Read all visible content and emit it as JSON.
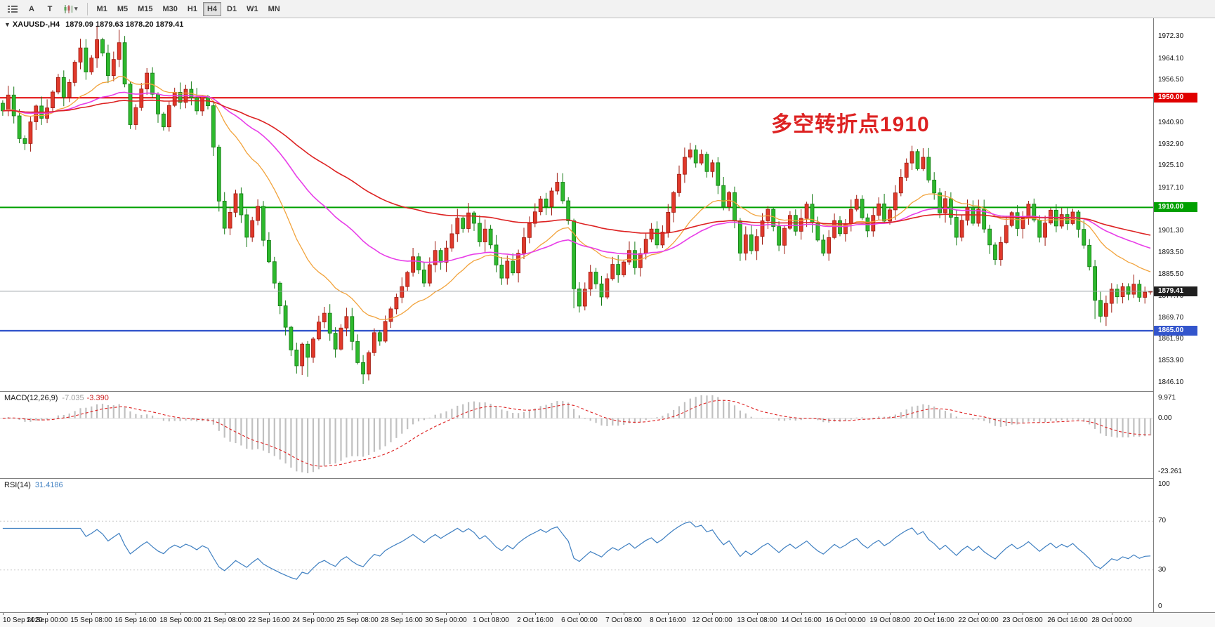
{
  "app": {
    "title": "XAUUSD-,H4"
  },
  "toolbar": {
    "tools": {
      "cursor_label": "A",
      "text_label": "T",
      "dropdown_glyph": "▾"
    },
    "timeframes": [
      {
        "label": "M1",
        "active": false
      },
      {
        "label": "M5",
        "active": false
      },
      {
        "label": "M15",
        "active": false
      },
      {
        "label": "M30",
        "active": false
      },
      {
        "label": "H1",
        "active": false
      },
      {
        "label": "H4",
        "active": true
      },
      {
        "label": "D1",
        "active": false
      },
      {
        "label": "W1",
        "active": false
      },
      {
        "label": "MN",
        "active": false
      }
    ]
  },
  "main": {
    "collapse_glyph": "▼",
    "symbol_header": "XAUUSD-,H4",
    "ohlc_text": "1879.09 1879.63 1878.20 1879.41",
    "annotation": {
      "text": "多空转折点1910",
      "color": "#dd2222"
    }
  },
  "levels": [
    {
      "price": 1950.0,
      "label": "1950.00",
      "color": "#e00000",
      "width": 2
    },
    {
      "price": 1910.0,
      "label": "1910.00",
      "color": "#00a000",
      "width": 2
    },
    {
      "price": 1865.0,
      "label": "1865.00",
      "color": "#3355cc",
      "width": 2.4
    },
    {
      "price": 1879.41,
      "label": "1879.41",
      "color": "#9aa0a6",
      "badge": "#1f1f1f",
      "type": "current"
    }
  ],
  "price_scale": [
    "1972.30",
    "1964.10",
    "1956.50",
    "1948.70",
    "1940.90",
    "1932.90",
    "1925.10",
    "1917.10",
    "1909.30",
    "1901.30",
    "1893.50",
    "1885.50",
    "1877.70",
    "1869.70",
    "1861.90",
    "1853.90",
    "1846.10"
  ],
  "time_scale": [
    "10 Sep 2020",
    "14 Sep 00:00",
    "15 Sep 08:00",
    "16 Sep 16:00",
    "18 Sep 00:00",
    "21 Sep 08:00",
    "22 Sep 16:00",
    "24 Sep 00:00",
    "25 Sep 08:00",
    "28 Sep 16:00",
    "30 Sep 00:00",
    "1 Oct 08:00",
    "2 Oct 16:00",
    "6 Oct 00:00",
    "7 Oct 08:00",
    "8 Oct 16:00",
    "12 Oct 00:00",
    "13 Oct 08:00",
    "14 Oct 16:00",
    "16 Oct 00:00",
    "19 Oct 08:00",
    "20 Oct 16:00",
    "22 Oct 00:00",
    "23 Oct 08:00",
    "26 Oct 16:00",
    "28 Oct 00:00"
  ],
  "macd": {
    "header": "MACD(12,26,9)",
    "value_main": "-7.035",
    "value_signal": "-3.390",
    "scale": [
      "9.971",
      "0.00",
      "-23.261"
    ]
  },
  "rsi": {
    "header": "RSI(14)",
    "value": "31.4186",
    "scale": [
      "100",
      "70",
      "30",
      "0"
    ],
    "levels": [
      70,
      30
    ]
  },
  "chart_data": {
    "type": "candlestick",
    "symbol": "XAUUSD-",
    "timeframe": "H4",
    "title": "XAUUSD-,H4 1879.09 1879.63 1878.20 1879.41",
    "current": {
      "open": 1879.09,
      "high": 1879.63,
      "low": 1878.2,
      "close": 1879.41
    },
    "first_open": 1948.0,
    "bars_per_label": 8,
    "price_range": [
      1843,
      1979
    ],
    "horizontal_levels": [
      1950.0,
      1910.0,
      1865.0,
      1879.41
    ],
    "closes": [
      1945.2,
      1951.0,
      1943.4,
      1935.1,
      1933.3,
      1941.2,
      1947.0,
      1942.5,
      1946.3,
      1952.1,
      1957.4,
      1950.2,
      1955.6,
      1963.0,
      1968.2,
      1959.4,
      1964.5,
      1971.2,
      1966.3,
      1958.1,
      1964.0,
      1970.1,
      1955.0,
      1940.2,
      1946.4,
      1953.2,
      1959.0,
      1951.3,
      1944.1,
      1939.4,
      1947.2,
      1952.0,
      1948.3,
      1953.1,
      1950.0,
      1945.2,
      1950.4,
      1947.1,
      1932.0,
      1912.3,
      1902.4,
      1908.2,
      1915.0,
      1907.3,
      1899.1,
      1905.2,
      1910.4,
      1898.0,
      1890.2,
      1882.4,
      1874.1,
      1866.3,
      1858.0,
      1852.2,
      1860.1,
      1855.3,
      1862.0,
      1868.2,
      1871.4,
      1864.1,
      1858.3,
      1866.0,
      1870.2,
      1861.1,
      1853.4,
      1849.2,
      1857.0,
      1864.3,
      1861.2,
      1868.4,
      1873.0,
      1877.2,
      1881.1,
      1886.3,
      1892.0,
      1887.2,
      1882.4,
      1889.1,
      1894.3,
      1890.0,
      1895.2,
      1900.4,
      1906.1,
      1902.3,
      1908.0,
      1904.2,
      1897.4,
      1902.1,
      1896.3,
      1889.0,
      1884.2,
      1890.4,
      1886.1,
      1893.3,
      1899.0,
      1904.2,
      1908.4,
      1913.1,
      1910.3,
      1916.0,
      1919.2,
      1912.4,
      1905.1,
      1880.3,
      1874.0,
      1880.2,
      1886.4,
      1882.1,
      1877.3,
      1884.0,
      1889.2,
      1885.4,
      1890.1,
      1894.3,
      1888.0,
      1893.2,
      1898.4,
      1902.1,
      1896.3,
      1901.0,
      1908.2,
      1915.4,
      1922.1,
      1928.3,
      1931.0,
      1926.2,
      1929.4,
      1923.1,
      1926.3,
      1918.0,
      1910.2,
      1915.4,
      1905.1,
      1893.3,
      1900.0,
      1894.2,
      1899.4,
      1905.1,
      1909.3,
      1903.0,
      1896.2,
      1902.4,
      1907.1,
      1901.3,
      1906.0,
      1911.2,
      1904.4,
      1898.1,
      1893.3,
      1899.0,
      1905.2,
      1900.4,
      1904.1,
      1909.3,
      1913.0,
      1906.2,
      1901.4,
      1907.1,
      1911.3,
      1905.0,
      1909.1,
      1915.3,
      1921.0,
      1926.2,
      1930.4,
      1924.1,
      1928.3,
      1920.0,
      1915.3,
      1908.0,
      1913.2,
      1906.4,
      1899.1,
      1905.3,
      1910.0,
      1904.2,
      1909.4,
      1902.1,
      1896.3,
      1891.0,
      1897.2,
      1903.4,
      1908.1,
      1902.3,
      1906.0,
      1911.2,
      1905.4,
      1899.1,
      1904.3,
      1909.0,
      1903.2,
      1907.4,
      1904.1,
      1908.3,
      1902.0,
      1896.2,
      1888.4,
      1876.1,
      1870.3,
      1875.0,
      1880.2,
      1877.4,
      1881.1,
      1878.3,
      1882.0,
      1877.2,
      1879.09,
      1879.41
    ],
    "wick_overrides": [
      {
        "i": 14,
        "h": 1969.0
      },
      {
        "i": 17,
        "h": 1976.2
      },
      {
        "i": 21,
        "h": 1974.8
      },
      {
        "i": 39,
        "l": 1908.5
      },
      {
        "i": 55,
        "l": 1848.2
      },
      {
        "i": 65,
        "l": 1846.4
      },
      {
        "i": 100,
        "h": 1920.8
      },
      {
        "i": 103,
        "l": 1873.2
      },
      {
        "i": 124,
        "h": 1933.2
      },
      {
        "i": 164,
        "h": 1932.5
      },
      {
        "i": 197,
        "l": 1869.3
      },
      {
        "i": 198,
        "l": 1868.0
      }
    ],
    "moving_averages": [
      {
        "name": "fast",
        "period": 20,
        "color": "#f2a33c"
      },
      {
        "name": "mid",
        "period": 48,
        "color": "#e83ee8"
      },
      {
        "name": "slow",
        "period": 95,
        "color": "#dd2222"
      }
    ],
    "colors": {
      "bull": "#e0392b",
      "bull_border": "#9e1b10",
      "bear": "#2db92d",
      "bear_border": "#157a15",
      "ma_fast": "#f2a33c",
      "ma_mid": "#e83ee8",
      "ma_slow": "#dd2222",
      "macd_hist": "#c0c0c0",
      "macd_signal": "#dd2222",
      "rsi": "#3e7fc1"
    }
  }
}
